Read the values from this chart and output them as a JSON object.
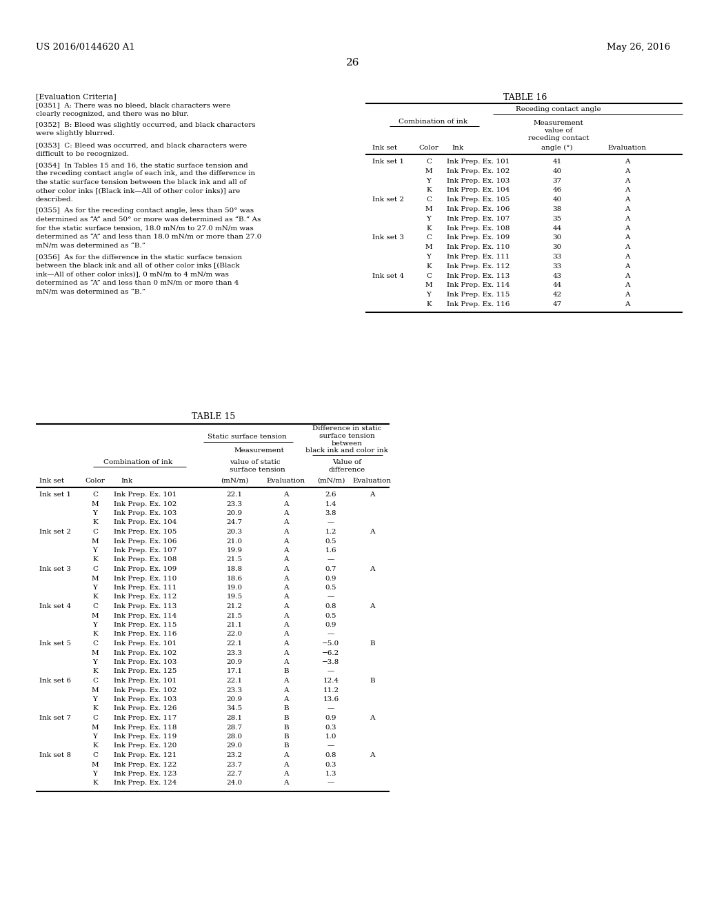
{
  "header_left": "US 2016/0144620 A1",
  "header_right": "May 26, 2016",
  "page_number": "26",
  "eval_criteria_title": "[Evaluation Criteria]",
  "table16_title": "TABLE 16",
  "table15_title": "TABLE 15",
  "paras": [
    "[0351]  A: There was no bleed, black characters were clearly recognized, and there was no blur.",
    "[0352]  B: Bleed was slightly occurred, and black characters were slightly blurred.",
    "[0353]  C: Bleed was occurred, and black characters were difficult to be recognized.",
    "[0354]  In Tables 15 and 16, the static surface tension and the receding contact angle of each ink, and the difference in the static surface tension between the black ink and all of other color inks [(Black ink—All of other color inks)] are described.",
    "[0355]  As for the receding contact angle, less than 50° was determined as “A” and 50° or more was determined as “B.” As for the static surface tension, 18.0 mN/m to 27.0 mN/m was determined as “A” and less than 18.0 mN/m or more than 27.0 mN/m was determined as “B.”",
    "[0356]  As for the difference in the static surface tension between the black ink and all of other color inks [(Black ink—All of other color inks)], 0 mN/m to 4 mN/m was determined as “A” and less than 0 mN/m or more than 4 mN/m was determined as “B.”"
  ],
  "para_wraps": [
    [
      "[0351]  A: There was no bleed, black characters were",
      "clearly recognized, and there was no blur."
    ],
    [
      "[0352]  B: Bleed was slightly occurred, and black characters",
      "were slightly blurred."
    ],
    [
      "[0353]  C: Bleed was occurred, and black characters were",
      "difficult to be recognized."
    ],
    [
      "[0354]  In Tables 15 and 16, the static surface tension and",
      "the receding contact angle of each ink, and the difference in",
      "the static surface tension between the black ink and all of",
      "other color inks [(Black ink—All of other color inks)] are",
      "described."
    ],
    [
      "[0355]  As for the receding contact angle, less than 50° was",
      "determined as “A” and 50° or more was determined as “B.” As",
      "for the static surface tension, 18.0 mN/m to 27.0 mN/m was",
      "determined as “A” and less than 18.0 mN/m or more than 27.0",
      "mN/m was determined as “B.”"
    ],
    [
      "[0356]  As for the difference in the static surface tension",
      "between the black ink and all of other color inks [(Black",
      "ink—All of other color inks)], 0 mN/m to 4 mN/m was",
      "determined as “A” and less than 0 mN/m or more than 4",
      "mN/m was determined as “B.”"
    ]
  ],
  "table16_data": [
    [
      "Ink set 1",
      "C",
      "Ink Prep. Ex. 101",
      "41",
      "A"
    ],
    [
      "",
      "M",
      "Ink Prep. Ex. 102",
      "40",
      "A"
    ],
    [
      "",
      "Y",
      "Ink Prep. Ex. 103",
      "37",
      "A"
    ],
    [
      "",
      "K",
      "Ink Prep. Ex. 104",
      "46",
      "A"
    ],
    [
      "Ink set 2",
      "C",
      "Ink Prep. Ex. 105",
      "40",
      "A"
    ],
    [
      "",
      "M",
      "Ink Prep. Ex. 106",
      "38",
      "A"
    ],
    [
      "",
      "Y",
      "Ink Prep. Ex. 107",
      "35",
      "A"
    ],
    [
      "",
      "K",
      "Ink Prep. Ex. 108",
      "44",
      "A"
    ],
    [
      "Ink set 3",
      "C",
      "Ink Prep. Ex. 109",
      "30",
      "A"
    ],
    [
      "",
      "M",
      "Ink Prep. Ex. 110",
      "30",
      "A"
    ],
    [
      "",
      "Y",
      "Ink Prep. Ex. 111",
      "33",
      "A"
    ],
    [
      "",
      "K",
      "Ink Prep. Ex. 112",
      "33",
      "A"
    ],
    [
      "Ink set 4",
      "C",
      "Ink Prep. Ex. 113",
      "43",
      "A"
    ],
    [
      "",
      "M",
      "Ink Prep. Ex. 114",
      "44",
      "A"
    ],
    [
      "",
      "Y",
      "Ink Prep. Ex. 115",
      "42",
      "A"
    ],
    [
      "",
      "K",
      "Ink Prep. Ex. 116",
      "47",
      "A"
    ]
  ],
  "table15_data": [
    [
      "Ink set 1",
      "C",
      "Ink Prep. Ex. 101",
      "22.1",
      "A",
      "2.6",
      "A"
    ],
    [
      "",
      "M",
      "Ink Prep. Ex. 102",
      "23.3",
      "A",
      "1.4",
      ""
    ],
    [
      "",
      "Y",
      "Ink Prep. Ex. 103",
      "20.9",
      "A",
      "3.8",
      ""
    ],
    [
      "",
      "K",
      "Ink Prep. Ex. 104",
      "24.7",
      "A",
      "—",
      ""
    ],
    [
      "Ink set 2",
      "C",
      "Ink Prep. Ex. 105",
      "20.3",
      "A",
      "1.2",
      "A"
    ],
    [
      "",
      "M",
      "Ink Prep. Ex. 106",
      "21.0",
      "A",
      "0.5",
      ""
    ],
    [
      "",
      "Y",
      "Ink Prep. Ex. 107",
      "19.9",
      "A",
      "1.6",
      ""
    ],
    [
      "",
      "K",
      "Ink Prep. Ex. 108",
      "21.5",
      "A",
      "—",
      ""
    ],
    [
      "Ink set 3",
      "C",
      "Ink Prep. Ex. 109",
      "18.8",
      "A",
      "0.7",
      "A"
    ],
    [
      "",
      "M",
      "Ink Prep. Ex. 110",
      "18.6",
      "A",
      "0.9",
      ""
    ],
    [
      "",
      "Y",
      "Ink Prep. Ex. 111",
      "19.0",
      "A",
      "0.5",
      ""
    ],
    [
      "",
      "K",
      "Ink Prep. Ex. 112",
      "19.5",
      "A",
      "—",
      ""
    ],
    [
      "Ink set 4",
      "C",
      "Ink Prep. Ex. 113",
      "21.2",
      "A",
      "0.8",
      "A"
    ],
    [
      "",
      "M",
      "Ink Prep. Ex. 114",
      "21.5",
      "A",
      "0.5",
      ""
    ],
    [
      "",
      "Y",
      "Ink Prep. Ex. 115",
      "21.1",
      "A",
      "0.9",
      ""
    ],
    [
      "",
      "K",
      "Ink Prep. Ex. 116",
      "22.0",
      "A",
      "—",
      ""
    ],
    [
      "Ink set 5",
      "C",
      "Ink Prep. Ex. 101",
      "22.1",
      "A",
      "−5.0",
      "B"
    ],
    [
      "",
      "M",
      "Ink Prep. Ex. 102",
      "23.3",
      "A",
      "−6.2",
      ""
    ],
    [
      "",
      "Y",
      "Ink Prep. Ex. 103",
      "20.9",
      "A",
      "−3.8",
      ""
    ],
    [
      "",
      "K",
      "Ink Prep. Ex. 125",
      "17.1",
      "B",
      "—",
      ""
    ],
    [
      "Ink set 6",
      "C",
      "Ink Prep. Ex. 101",
      "22.1",
      "A",
      "12.4",
      "B"
    ],
    [
      "",
      "M",
      "Ink Prep. Ex. 102",
      "23.3",
      "A",
      "11.2",
      ""
    ],
    [
      "",
      "Y",
      "Ink Prep. Ex. 103",
      "20.9",
      "A",
      "13.6",
      ""
    ],
    [
      "",
      "K",
      "Ink Prep. Ex. 126",
      "34.5",
      "B",
      "—",
      ""
    ],
    [
      "Ink set 7",
      "C",
      "Ink Prep. Ex. 117",
      "28.1",
      "B",
      "0.9",
      "A"
    ],
    [
      "",
      "M",
      "Ink Prep. Ex. 118",
      "28.7",
      "B",
      "0.3",
      ""
    ],
    [
      "",
      "Y",
      "Ink Prep. Ex. 119",
      "28.0",
      "B",
      "1.0",
      ""
    ],
    [
      "",
      "K",
      "Ink Prep. Ex. 120",
      "29.0",
      "B",
      "—",
      ""
    ],
    [
      "Ink set 8",
      "C",
      "Ink Prep. Ex. 121",
      "23.2",
      "A",
      "0.8",
      "A"
    ],
    [
      "",
      "M",
      "Ink Prep. Ex. 122",
      "23.7",
      "A",
      "0.3",
      ""
    ],
    [
      "",
      "Y",
      "Ink Prep. Ex. 123",
      "22.7",
      "A",
      "1.3",
      ""
    ],
    [
      "",
      "K",
      "Ink Prep. Ex. 124",
      "24.0",
      "A",
      "—",
      ""
    ]
  ]
}
